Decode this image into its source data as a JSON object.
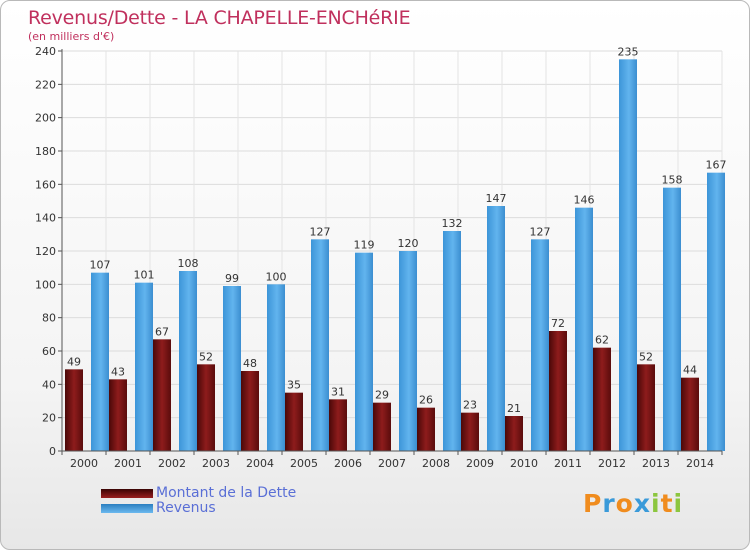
{
  "header": {
    "title": "Revenus/Dette - LA CHAPELLE-ENCHéRIE",
    "subtitle": "(en milliers d'€)"
  },
  "chart_data": {
    "type": "bar",
    "title": "Revenus/Dette - LA CHAPELLE-ENCHéRIE",
    "subtitle": "(en milliers d'€)",
    "categories": [
      "2000",
      "2001",
      "2002",
      "2003",
      "2004",
      "2005",
      "2006",
      "2007",
      "2008",
      "2009",
      "2010",
      "2011",
      "2012",
      "2013",
      "2014"
    ],
    "series": [
      {
        "name": "Montant de la Dette",
        "color": "#7a1414",
        "values": [
          49,
          43,
          67,
          52,
          48,
          35,
          31,
          29,
          26,
          23,
          21,
          72,
          62,
          52,
          44
        ]
      },
      {
        "name": "Revenus",
        "color": "#4ba3e3",
        "values": [
          107,
          101,
          108,
          99,
          100,
          127,
          119,
          120,
          132,
          147,
          127,
          146,
          235,
          158,
          167
        ]
      }
    ],
    "ylim": [
      0,
      240
    ],
    "yticks": [
      0,
      20,
      40,
      60,
      80,
      100,
      120,
      140,
      160,
      180,
      200,
      220,
      240
    ],
    "grid": true,
    "legend_position": "bottom-left"
  },
  "legend": {
    "items": [
      {
        "label": "Montant de la Dette",
        "color": "#7a1414"
      },
      {
        "label": "Revenus",
        "color": "#4ba3e3"
      }
    ]
  },
  "logo": {
    "letters": [
      "P",
      "r",
      "o",
      "x",
      "i",
      "t",
      "i"
    ],
    "colors": [
      "#f08c1e",
      "#3a9ad9",
      "#f08c1e",
      "#3a9ad9",
      "#8cc63f",
      "#f08c1e",
      "#8cc63f"
    ]
  }
}
